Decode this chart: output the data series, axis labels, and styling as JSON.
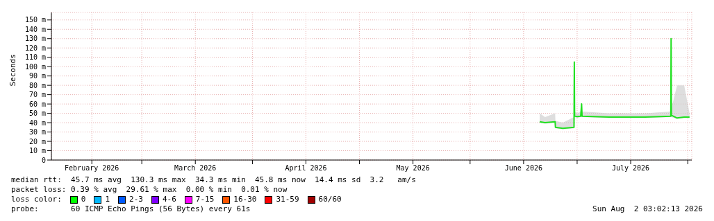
{
  "chart_data": {
    "type": "line",
    "ylabel": "Seconds",
    "x": [
      "2026-06-20T12:00",
      "2026-06-22",
      "2026-06-24T20:00",
      "2026-06-24T22:00",
      "2026-06-27",
      "2026-06-30T03:00",
      "2026-06-30T05:00",
      "2026-06-30T07:00",
      "2026-07-01",
      "2026-07-02",
      "2026-07-02T06:00",
      "2026-07-02T09:00",
      "2026-07-10",
      "2026-07-20",
      "2026-07-27T06:00",
      "2026-07-27T08:00",
      "2026-07-27T10:00",
      "2026-07-29",
      "2026-07-31",
      "2026-08-01T12:00"
    ],
    "series": [
      {
        "color": "#20e020",
        "values": [
          41,
          40,
          41,
          35,
          34,
          35,
          105,
          47,
          46.5,
          47,
          60,
          47,
          46,
          46,
          47,
          130,
          48,
          45,
          46,
          46
        ],
        "lower": [
          40,
          39,
          40,
          34,
          33,
          34,
          40,
          46,
          45,
          46,
          46,
          46,
          45,
          45,
          46,
          46,
          46,
          44,
          45,
          45
        ],
        "upper": [
          50,
          46,
          50,
          42,
          40,
          46,
          110,
          52,
          50,
          52,
          62,
          52,
          50,
          50,
          52,
          132,
          55,
          80,
          80,
          50
        ]
      }
    ],
    "xlim": [
      "2026-02-03T16:00",
      "2026-08-02T03:00"
    ],
    "xticks": [
      {
        "value": "2026-02-15",
        "label": "February 2026"
      },
      {
        "value": "2026-03-01",
        "label": null
      },
      {
        "value": "2026-03-16",
        "label": "March 2026"
      },
      {
        "value": "2026-04-01",
        "label": null
      },
      {
        "value": "2026-04-16",
        "label": "April 2026"
      },
      {
        "value": "2026-05-01",
        "label": null
      },
      {
        "value": "2026-05-16",
        "label": "May 2026"
      },
      {
        "value": "2026-06-01",
        "label": null
      },
      {
        "value": "2026-06-16",
        "label": "June 2026"
      },
      {
        "value": "2026-07-01",
        "label": null
      },
      {
        "value": "2026-07-16",
        "label": "July 2026"
      },
      {
        "value": "2026-08-01",
        "label": null
      }
    ],
    "ylim": [
      0,
      158
    ],
    "yticks": [
      0,
      {
        "value": 10,
        "label": "10 m"
      },
      {
        "value": 20,
        "label": "20 m"
      },
      {
        "value": 30,
        "label": "30 m"
      },
      {
        "value": 40,
        "label": "40 m"
      },
      {
        "value": 50,
        "label": "50 m"
      },
      {
        "value": 60,
        "label": "60 m"
      },
      {
        "value": 70,
        "label": "70 m"
      },
      {
        "value": 80,
        "label": "80 m"
      },
      {
        "value": 90,
        "label": "90 m"
      },
      {
        "value": 100,
        "label": "100 m"
      },
      {
        "value": 110,
        "label": "110 m"
      },
      {
        "value": 120,
        "label": "120 m"
      },
      {
        "value": 130,
        "label": "130 m"
      },
      {
        "value": 140,
        "label": "140 m"
      },
      {
        "value": 150,
        "label": "150 m"
      }
    ],
    "grid": true,
    "marker": "none",
    "line_style": "solid",
    "legend": false,
    "annotations": [
      "median rtt:  45.7 ms avg  130.3 ms max  34.3 ms min  45.8 ms now  14.4 ms sd  3.2   am/s",
      "packet loss: 0.39 % avg  29.61 % max  0.00 % min  0.01 % now",
      "loss color:",
      "0",
      "1",
      "2-3",
      "4-6",
      "7-15",
      "16-30",
      "31-59",
      "60/60",
      "probe:       60 ICMP Echo Pings (56 Bytes) every 61s",
      "Sun Aug  2 03:02:13 2026"
    ]
  }
}
